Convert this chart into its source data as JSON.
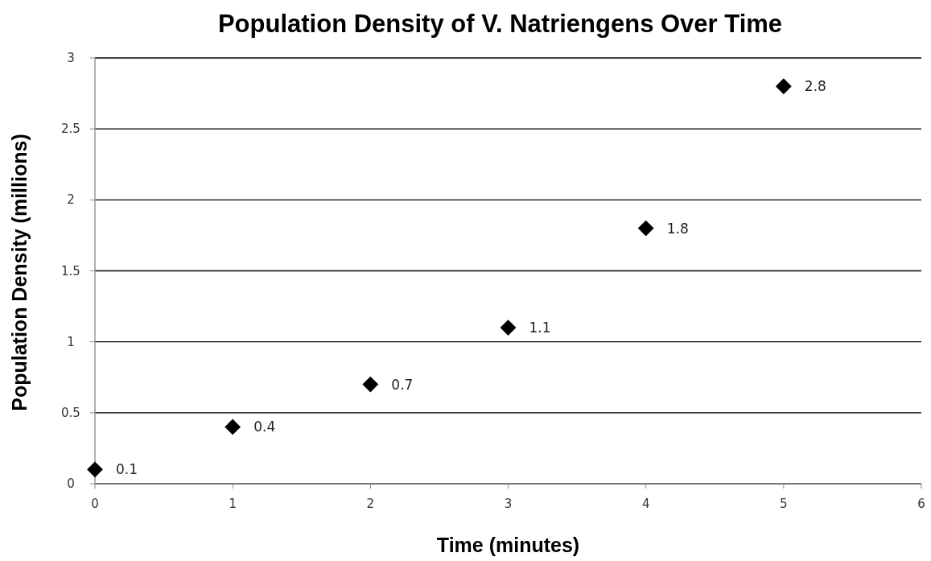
{
  "chart_data": {
    "type": "scatter",
    "title": "Population Density of V. Natriengens  Over Time",
    "xlabel": "Time (minutes)",
    "ylabel": "Population Density (millions)",
    "x": [
      0,
      1,
      2,
      3,
      4,
      5
    ],
    "values": [
      0.1,
      0.4,
      0.7,
      1.1,
      1.8,
      2.8
    ],
    "color": "#000000",
    "marker": "diamond",
    "data_labels": true,
    "grid": "y",
    "xlim": [
      0,
      6
    ],
    "xticks": [
      0,
      1,
      2,
      3,
      4,
      5,
      6
    ],
    "ylim": [
      0,
      3
    ],
    "yticks": [
      0,
      0.5,
      1,
      1.5,
      2,
      2.5,
      3
    ]
  }
}
